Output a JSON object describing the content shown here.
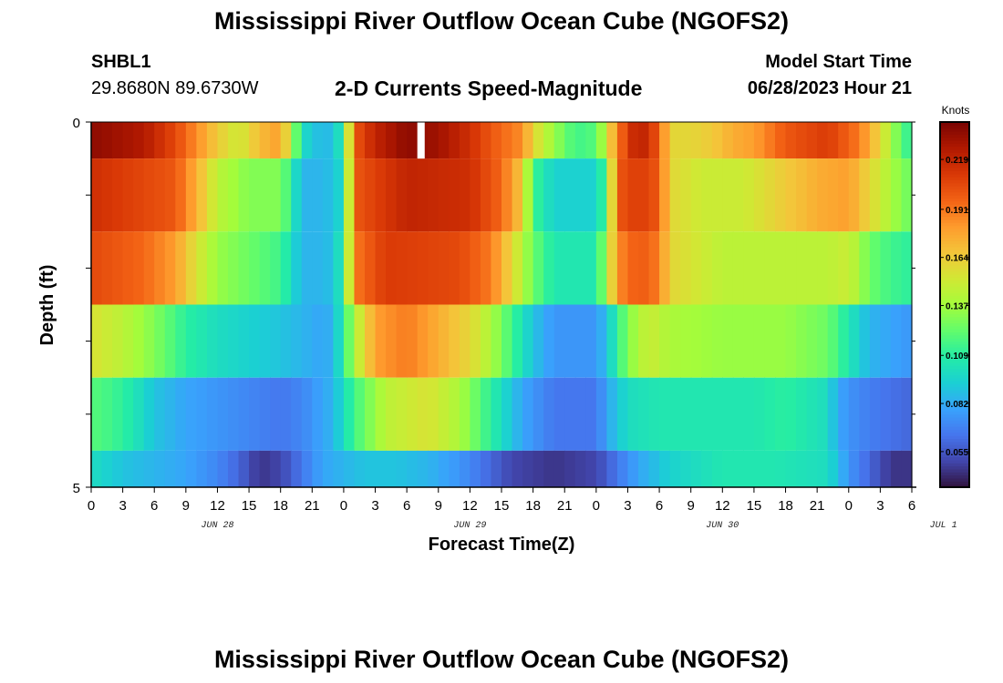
{
  "header": {
    "title": "Mississippi River Outflow Ocean Cube (NGOFS2)",
    "station_id": "SHBL1",
    "coordinates": "29.8680N  89.6730W",
    "subtitle": "2-D Currents Speed-Magnitude",
    "model_start_label": "Model Start Time",
    "model_start_value": "06/28/2023 Hour 21"
  },
  "footer": {
    "title": "Mississippi River Outflow Ocean Cube (NGOFS2)"
  },
  "chart_data": {
    "type": "heatmap",
    "title": "2-D Currents Speed-Magnitude",
    "xlabel": "Forecast Time(Z)",
    "ylabel": "Depth (ft)",
    "x_tick_labels": [
      "0",
      "3",
      "6",
      "9",
      "12",
      "15",
      "18",
      "21",
      "0",
      "3",
      "6",
      "9",
      "12",
      "15",
      "18",
      "21",
      "0",
      "3",
      "6",
      "9",
      "12",
      "15",
      "18",
      "21",
      "0",
      "3",
      "6"
    ],
    "date_labels": [
      {
        "label": "JUN 28",
        "hour": 12
      },
      {
        "label": "JUN 29",
        "hour": 36
      },
      {
        "label": "JUN 30",
        "hour": 60
      },
      {
        "label": "JUL 1",
        "hour": 81
      }
    ],
    "xlim": [
      0,
      78
    ],
    "y_tick_labels": [
      "0",
      "5"
    ],
    "ylim": [
      0,
      5
    ],
    "layers": [
      {
        "depth_top": 0.0,
        "depth_bottom": 0.5,
        "keys": [
          [
            0,
            0.235
          ],
          [
            5,
            0.225
          ],
          [
            8,
            0.205
          ],
          [
            10,
            0.185
          ],
          [
            12,
            0.165
          ],
          [
            14,
            0.15
          ],
          [
            16,
            0.17
          ],
          [
            18,
            0.18
          ],
          [
            19,
            0.145
          ],
          [
            20,
            0.1
          ],
          [
            22,
            0.085
          ],
          [
            23,
            0.09
          ],
          [
            24,
            0.11
          ],
          [
            25,
            0.2
          ],
          [
            27,
            0.22
          ],
          [
            30,
            0.235
          ],
          [
            33,
            0.23
          ],
          [
            36,
            0.215
          ],
          [
            38,
            0.2
          ],
          [
            41,
            0.185
          ],
          [
            42,
            0.16
          ],
          [
            44,
            0.135
          ],
          [
            46,
            0.115
          ],
          [
            48,
            0.12
          ],
          [
            49,
            0.15
          ],
          [
            50,
            0.19
          ],
          [
            52,
            0.225
          ],
          [
            54,
            0.2
          ],
          [
            55,
            0.16
          ],
          [
            57,
            0.16
          ],
          [
            59,
            0.165
          ],
          [
            61,
            0.175
          ],
          [
            63,
            0.18
          ],
          [
            66,
            0.2
          ],
          [
            70,
            0.21
          ],
          [
            73,
            0.19
          ],
          [
            75,
            0.16
          ],
          [
            76,
            0.14
          ],
          [
            77,
            0.12
          ],
          [
            78,
            0.11
          ]
        ]
      },
      {
        "depth_top": 0.5,
        "depth_bottom": 1.5,
        "keys": [
          [
            0,
            0.215
          ],
          [
            8,
            0.2
          ],
          [
            10,
            0.175
          ],
          [
            12,
            0.145
          ],
          [
            15,
            0.13
          ],
          [
            18,
            0.13
          ],
          [
            19,
            0.11
          ],
          [
            20,
            0.085
          ],
          [
            22,
            0.085
          ],
          [
            23,
            0.09
          ],
          [
            24,
            0.1
          ],
          [
            25,
            0.2
          ],
          [
            30,
            0.22
          ],
          [
            36,
            0.215
          ],
          [
            39,
            0.195
          ],
          [
            41,
            0.165
          ],
          [
            42,
            0.115
          ],
          [
            44,
            0.095
          ],
          [
            48,
            0.095
          ],
          [
            49,
            0.12
          ],
          [
            50,
            0.2
          ],
          [
            52,
            0.21
          ],
          [
            54,
            0.2
          ],
          [
            55,
            0.16
          ],
          [
            58,
            0.15
          ],
          [
            62,
            0.15
          ],
          [
            66,
            0.165
          ],
          [
            69,
            0.175
          ],
          [
            72,
            0.18
          ],
          [
            75,
            0.15
          ],
          [
            77,
            0.13
          ],
          [
            78,
            0.125
          ]
        ]
      },
      {
        "depth_top": 1.5,
        "depth_bottom": 2.5,
        "keys": [
          [
            0,
            0.205
          ],
          [
            5,
            0.195
          ],
          [
            8,
            0.18
          ],
          [
            10,
            0.155
          ],
          [
            12,
            0.135
          ],
          [
            15,
            0.125
          ],
          [
            18,
            0.115
          ],
          [
            19,
            0.1
          ],
          [
            20,
            0.085
          ],
          [
            22,
            0.085
          ],
          [
            23,
            0.09
          ],
          [
            24,
            0.11
          ],
          [
            25,
            0.19
          ],
          [
            28,
            0.21
          ],
          [
            35,
            0.205
          ],
          [
            38,
            0.19
          ],
          [
            40,
            0.16
          ],
          [
            42,
            0.125
          ],
          [
            44,
            0.105
          ],
          [
            48,
            0.105
          ],
          [
            49,
            0.14
          ],
          [
            50,
            0.185
          ],
          [
            52,
            0.2
          ],
          [
            54,
            0.19
          ],
          [
            55,
            0.16
          ],
          [
            60,
            0.145
          ],
          [
            66,
            0.145
          ],
          [
            70,
            0.145
          ],
          [
            72,
            0.15
          ],
          [
            74,
            0.125
          ],
          [
            76,
            0.115
          ],
          [
            78,
            0.11
          ]
        ]
      },
      {
        "depth_top": 2.5,
        "depth_bottom": 3.5,
        "keys": [
          [
            0,
            0.155
          ],
          [
            3,
            0.145
          ],
          [
            6,
            0.13
          ],
          [
            9,
            0.11
          ],
          [
            12,
            0.1
          ],
          [
            15,
            0.095
          ],
          [
            18,
            0.09
          ],
          [
            20,
            0.085
          ],
          [
            22,
            0.08
          ],
          [
            23,
            0.085
          ],
          [
            24,
            0.11
          ],
          [
            25,
            0.14
          ],
          [
            27,
            0.18
          ],
          [
            30,
            0.19
          ],
          [
            33,
            0.175
          ],
          [
            36,
            0.16
          ],
          [
            38,
            0.14
          ],
          [
            40,
            0.115
          ],
          [
            42,
            0.09
          ],
          [
            44,
            0.075
          ],
          [
            48,
            0.075
          ],
          [
            49,
            0.09
          ],
          [
            51,
            0.13
          ],
          [
            53,
            0.15
          ],
          [
            55,
            0.14
          ],
          [
            60,
            0.135
          ],
          [
            66,
            0.135
          ],
          [
            70,
            0.125
          ],
          [
            72,
            0.105
          ],
          [
            74,
            0.085
          ],
          [
            76,
            0.08
          ],
          [
            78,
            0.075
          ]
        ]
      },
      {
        "depth_top": 3.5,
        "depth_bottom": 4.5,
        "keys": [
          [
            0,
            0.12
          ],
          [
            2,
            0.115
          ],
          [
            4,
            0.105
          ],
          [
            6,
            0.09
          ],
          [
            9,
            0.08
          ],
          [
            12,
            0.075
          ],
          [
            15,
            0.07
          ],
          [
            18,
            0.065
          ],
          [
            20,
            0.07
          ],
          [
            22,
            0.08
          ],
          [
            23,
            0.085
          ],
          [
            24,
            0.1
          ],
          [
            25,
            0.115
          ],
          [
            28,
            0.145
          ],
          [
            32,
            0.155
          ],
          [
            35,
            0.14
          ],
          [
            37,
            0.12
          ],
          [
            39,
            0.1
          ],
          [
            41,
            0.08
          ],
          [
            44,
            0.065
          ],
          [
            48,
            0.065
          ],
          [
            49,
            0.08
          ],
          [
            51,
            0.1
          ],
          [
            54,
            0.105
          ],
          [
            58,
            0.105
          ],
          [
            63,
            0.105
          ],
          [
            66,
            0.11
          ],
          [
            70,
            0.1
          ],
          [
            71,
            0.08
          ],
          [
            73,
            0.07
          ],
          [
            75,
            0.065
          ],
          [
            78,
            0.06
          ]
        ]
      },
      {
        "depth_top": 4.5,
        "depth_bottom": 5.0,
        "keys": [
          [
            0,
            0.1
          ],
          [
            3,
            0.09
          ],
          [
            6,
            0.085
          ],
          [
            9,
            0.08
          ],
          [
            12,
            0.07
          ],
          [
            14,
            0.06
          ],
          [
            16,
            0.045
          ],
          [
            18,
            0.05
          ],
          [
            20,
            0.065
          ],
          [
            22,
            0.08
          ],
          [
            24,
            0.085
          ],
          [
            26,
            0.09
          ],
          [
            29,
            0.09
          ],
          [
            32,
            0.085
          ],
          [
            35,
            0.075
          ],
          [
            38,
            0.06
          ],
          [
            40,
            0.05
          ],
          [
            44,
            0.045
          ],
          [
            48,
            0.05
          ],
          [
            50,
            0.065
          ],
          [
            52,
            0.08
          ],
          [
            55,
            0.095
          ],
          [
            60,
            0.105
          ],
          [
            65,
            0.105
          ],
          [
            70,
            0.1
          ],
          [
            72,
            0.075
          ],
          [
            74,
            0.06
          ],
          [
            76,
            0.045
          ],
          [
            78,
            0.045
          ]
        ]
      }
    ],
    "missing_cells": [
      {
        "x_start": 31.0,
        "x_end": 31.7,
        "depth_top": 0.0,
        "depth_bottom": 0.5,
        "color": "#ffffff"
      }
    ],
    "colorbar": {
      "unit": "Knots",
      "vmin": 0.035,
      "vmax": 0.24,
      "tick_values": [
        0.055,
        0.082,
        0.109,
        0.137,
        0.164,
        0.191,
        0.219
      ],
      "tick_labels": [
        "0.055",
        "0.082",
        "0.109",
        "0.137",
        "0.164",
        "0.191",
        "0.219"
      ]
    },
    "colors": {
      "palette": [
        "#30123b",
        "#4145ab",
        "#4675ed",
        "#39a2fc",
        "#1bcfd4",
        "#24eca6",
        "#61fc6c",
        "#a4fc3b",
        "#d1e834",
        "#f3c63a",
        "#fe9b2d",
        "#f36315",
        "#d93806",
        "#b11901",
        "#7a0402"
      ]
    }
  }
}
